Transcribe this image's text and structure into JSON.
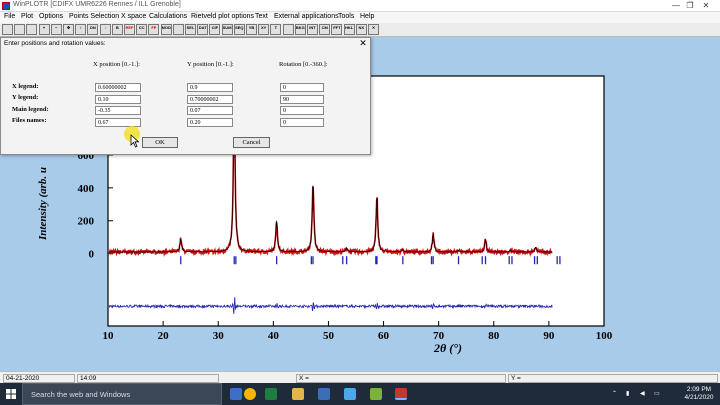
{
  "window": {
    "title": "WinPLOTR [CDIFX UMR6226 Rennes / ILL Grenoble]",
    "minimize_glyph": "—",
    "maximize_glyph": "❐",
    "close_glyph": "✕"
  },
  "menu": [
    "File",
    "Plot",
    "Options",
    "Points Selection",
    "X space",
    "Calculations",
    "Rietveld plot options",
    "Text",
    "External applications",
    "Tools",
    "Help"
  ],
  "toolbar_icons": [
    {
      "name": "open-icon",
      "glyph": ""
    },
    {
      "name": "save-icon",
      "glyph": ""
    },
    {
      "name": "print-icon",
      "glyph": ""
    },
    {
      "name": "zoom-in-icon",
      "glyph": "+"
    },
    {
      "name": "zoom-out-icon",
      "glyph": "−"
    },
    {
      "name": "move-icon",
      "glyph": "✥"
    },
    {
      "name": "expand-icon",
      "glyph": "↕"
    },
    {
      "name": "dn-icon",
      "glyph": "DN"
    },
    {
      "name": "arrow-down-icon",
      "glyph": "↓"
    },
    {
      "name": "b-icon",
      "glyph": "B"
    },
    {
      "name": "ref-icon",
      "glyph": "REF"
    },
    {
      "name": "cc-icon",
      "glyph": "CC"
    },
    {
      "name": "fp-icon",
      "glyph": "FP"
    },
    {
      "name": "mod-icon",
      "glyph": "MOD"
    },
    {
      "name": "img-icon",
      "glyph": ""
    },
    {
      "name": "sel-icon",
      "glyph": "SEL"
    },
    {
      "name": "dat-icon",
      "glyph": "DAT"
    },
    {
      "name": "cif-icon",
      "glyph": "CIF"
    },
    {
      "name": "sum-icon",
      "glyph": "SUM"
    },
    {
      "name": "seq-icon",
      "glyph": "SEQ"
    },
    {
      "name": "yb-icon",
      "glyph": "YB"
    },
    {
      "name": "xy-icon",
      "glyph": "XY"
    },
    {
      "name": "text-icon",
      "glyph": "T"
    },
    {
      "name": "picture-icon",
      "glyph": ""
    },
    {
      "name": "bkg-icon",
      "glyph": "BKG"
    },
    {
      "name": "int-icon",
      "glyph": "INT"
    },
    {
      "name": "cm-icon",
      "glyph": "CM"
    },
    {
      "name": "fft-icon",
      "glyph": "FFT"
    },
    {
      "name": "hk-icon",
      "glyph": "HKL"
    },
    {
      "name": "nx-icon",
      "glyph": "NX"
    },
    {
      "name": "cross-icon",
      "glyph": "✕"
    }
  ],
  "dialog": {
    "title": "Enter positions and rotation values:",
    "close_glyph": "✕",
    "col_x": "X position [0.-1.]:",
    "col_y": "Y position [0.-1.]:",
    "col_rot": "Rotation [0.-360.]:",
    "rows": [
      {
        "label": "X legend:",
        "x": "0.60000002",
        "y": "0.9",
        "rot": "0"
      },
      {
        "label": "Y legend:",
        "x": "0.10",
        "y": "0.70000002",
        "rot": "90"
      },
      {
        "label": "Main legend:",
        "x": "-0.35",
        "y": "0.07",
        "rot": "0"
      },
      {
        "label": "Files names:",
        "x": "0.67",
        "y": "0.20",
        "rot": "0"
      }
    ],
    "ok": "OK",
    "cancel": "Cancel"
  },
  "chart_data": {
    "type": "line",
    "xlabel": "2θ (°)",
    "ylabel": "Intensity (arb. u",
    "xlim": [
      10,
      100
    ],
    "x_ticks": [
      10,
      20,
      30,
      40,
      50,
      60,
      70,
      80,
      90,
      100
    ],
    "y_ticks": [
      0,
      200,
      400,
      600,
      800
    ],
    "ylim": [
      -440,
      1080
    ],
    "colors": {
      "observed": "#c41414",
      "calculated": "#000000",
      "difference": "#2424b0",
      "bragg": "#2424b0"
    },
    "peaks": [
      {
        "x": 23.2,
        "y": 80
      },
      {
        "x": 32.9,
        "y": 970
      },
      {
        "x": 40.6,
        "y": 190
      },
      {
        "x": 47.2,
        "y": 420
      },
      {
        "x": 53.3,
        "y": 25
      },
      {
        "x": 58.8,
        "y": 340
      },
      {
        "x": 63.5,
        "y": 15
      },
      {
        "x": 69.0,
        "y": 110
      },
      {
        "x": 73.6,
        "y": 10
      },
      {
        "x": 78.5,
        "y": 75
      },
      {
        "x": 83.0,
        "y": 12
      },
      {
        "x": 87.6,
        "y": 30
      }
    ],
    "background_level": 10,
    "bragg_positions": [
      23.2,
      32.9,
      33.2,
      40.6,
      46.9,
      47.2,
      52.6,
      53.3,
      58.6,
      58.8,
      63.5,
      68.7,
      69.0,
      73.6,
      77.9,
      78.5,
      82.8,
      83.3,
      87.4,
      87.9,
      91.5,
      92.0
    ],
    "bragg_y": -40,
    "difference_offset": -320,
    "difference_spikes": [
      {
        "x": 32.9,
        "a": 60
      },
      {
        "x": 47.2,
        "a": 35
      },
      {
        "x": 58.8,
        "a": 28
      },
      {
        "x": 40.6,
        "a": 18
      },
      {
        "x": 69.0,
        "a": 14
      },
      {
        "x": 78.5,
        "a": 10
      },
      {
        "x": 23.2,
        "a": 12
      }
    ]
  },
  "statusbar": {
    "date": "04-21-2020",
    "time": "14:09",
    "x_label": "X =",
    "y_label": "Y ="
  },
  "taskbar": {
    "search_placeholder": "Search the web and Windows",
    "clock_time": "2:09 PM",
    "clock_date": "4/21/2020"
  }
}
